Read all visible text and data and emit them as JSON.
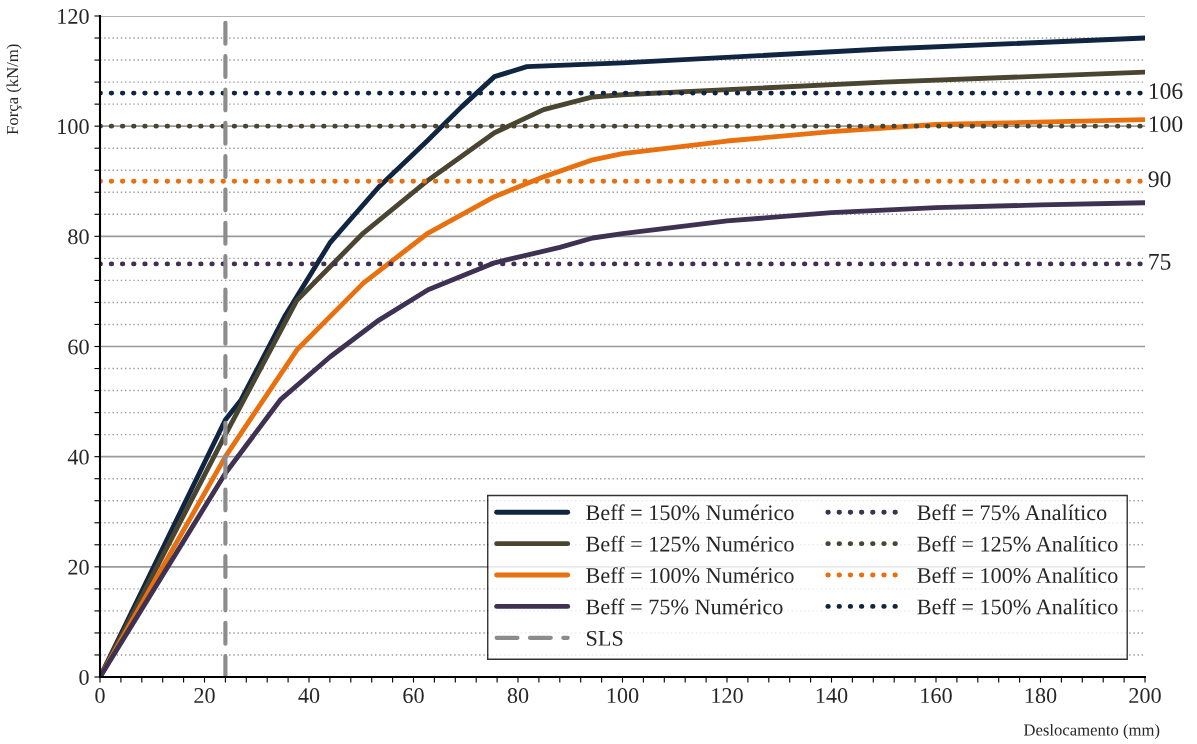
{
  "chart_data": {
    "type": "line",
    "xlabel": "Deslocamento (mm)",
    "ylabel": "Força (kN/m)",
    "xlim": [
      0,
      200
    ],
    "ylim": [
      0,
      120
    ],
    "xticks": [
      0,
      {
        "value": 4,
        "label": null
      },
      {
        "value": 8,
        "label": null
      },
      {
        "value": 12,
        "label": null
      },
      {
        "value": 16,
        "label": null
      },
      20,
      {
        "value": 24,
        "label": null
      },
      {
        "value": 28,
        "label": null
      },
      {
        "value": 32,
        "label": null
      },
      {
        "value": 36,
        "label": null
      },
      40,
      {
        "value": 44,
        "label": null
      },
      {
        "value": 48,
        "label": null
      },
      {
        "value": 52,
        "label": null
      },
      {
        "value": 56,
        "label": null
      },
      60,
      {
        "value": 64,
        "label": null
      },
      {
        "value": 68,
        "label": null
      },
      {
        "value": 72,
        "label": null
      },
      {
        "value": 76,
        "label": null
      },
      80,
      {
        "value": 84,
        "label": null
      },
      {
        "value": 88,
        "label": null
      },
      {
        "value": 92,
        "label": null
      },
      {
        "value": 96,
        "label": null
      },
      100,
      {
        "value": 104,
        "label": null
      },
      {
        "value": 108,
        "label": null
      },
      {
        "value": 112,
        "label": null
      },
      {
        "value": 116,
        "label": null
      },
      120,
      {
        "value": 124,
        "label": null
      },
      {
        "value": 128,
        "label": null
      },
      {
        "value": 132,
        "label": null
      },
      {
        "value": 136,
        "label": null
      },
      140,
      {
        "value": 144,
        "label": null
      },
      {
        "value": 148,
        "label": null
      },
      {
        "value": 152,
        "label": null
      },
      {
        "value": 156,
        "label": null
      },
      160,
      {
        "value": 164,
        "label": null
      },
      {
        "value": 168,
        "label": null
      },
      {
        "value": 172,
        "label": null
      },
      {
        "value": 176,
        "label": null
      },
      180,
      {
        "value": 184,
        "label": null
      },
      {
        "value": 188,
        "label": null
      },
      {
        "value": 192,
        "label": null
      },
      {
        "value": 196,
        "label": null
      },
      200
    ],
    "yticks": [
      0,
      {
        "value": 4,
        "label": null
      },
      {
        "value": 8,
        "label": null
      },
      {
        "value": 12,
        "label": null
      },
      {
        "value": 16,
        "label": null
      },
      20,
      {
        "value": 24,
        "label": null
      },
      {
        "value": 28,
        "label": null
      },
      {
        "value": 32,
        "label": null
      },
      {
        "value": 36,
        "label": null
      },
      40,
      {
        "value": 44,
        "label": null
      },
      {
        "value": 48,
        "label": null
      },
      {
        "value": 52,
        "label": null
      },
      {
        "value": 56,
        "label": null
      },
      60,
      {
        "value": 64,
        "label": null
      },
      {
        "value": 68,
        "label": null
      },
      {
        "value": 72,
        "label": null
      },
      {
        "value": 76,
        "label": null
      },
      80,
      {
        "value": 84,
        "label": null
      },
      {
        "value": 88,
        "label": null
      },
      {
        "value": 92,
        "label": null
      },
      {
        "value": 96,
        "label": null
      },
      100,
      {
        "value": 104,
        "label": null
      },
      {
        "value": 108,
        "label": null
      },
      {
        "value": 112,
        "label": null
      },
      {
        "value": 116,
        "label": null
      },
      120
    ],
    "grid": "y",
    "legend": "bottom right",
    "marker": "none",
    "series": [
      {
        "name": "Beff = 150% Numérico",
        "color": "#0f2541",
        "line_style": "solid",
        "x": [
          0,
          24,
          27,
          35.3,
          44,
          53.4,
          62.8,
          69.2,
          75.5,
          81.7,
          100,
          150,
          200
        ],
        "values": [
          0,
          46.7,
          50.3,
          65.4,
          78.8,
          89,
          97.5,
          103.5,
          109,
          110.8,
          111.5,
          114,
          116
        ]
      },
      {
        "name": "Beff = 125% Numérico",
        "color": "#4a4530",
        "line_style": "solid",
        "x": [
          0,
          24,
          37.7,
          50.4,
          62.8,
          75.5,
          84.9,
          94.3,
          100,
          150,
          200
        ],
        "values": [
          0,
          44,
          68.4,
          80.6,
          90.2,
          98.8,
          103,
          105.3,
          105.7,
          108,
          109.8
        ]
      },
      {
        "name": "Beff = 100% Numérico",
        "color": "#e8700f",
        "line_style": "solid",
        "x": [
          0,
          24,
          37.7,
          50.4,
          62.8,
          75.5,
          84.9,
          94.3,
          100,
          120,
          140,
          160,
          200
        ],
        "values": [
          0,
          40,
          59.4,
          71.5,
          80.6,
          87.2,
          90.8,
          93.9,
          95,
          97.3,
          99,
          100.3,
          101.2
        ]
      },
      {
        "name": "Beff = 75% Numérico",
        "color": "#3f3152",
        "line_style": "solid",
        "x": [
          0,
          24,
          34.5,
          44,
          53.4,
          62.8,
          75.5,
          88,
          94.3,
          100,
          120,
          140,
          160,
          180,
          200
        ],
        "values": [
          0,
          37,
          50.3,
          58.1,
          64.8,
          70.3,
          75.2,
          78,
          79.7,
          80.5,
          82.8,
          84.3,
          85.2,
          85.7,
          86.1
        ]
      },
      {
        "name": "Beff = 75% Analítico",
        "color": "#3f3152",
        "line_style": "dotted",
        "x": [
          0,
          200
        ],
        "values": [
          75,
          75
        ],
        "value_labels": [
          null,
          "75"
        ]
      },
      {
        "name": "Beff = 125% Analítico",
        "color": "#4a4530",
        "line_style": "dotted",
        "x": [
          0,
          200
        ],
        "values": [
          100,
          100
        ],
        "value_labels": [
          null,
          "100"
        ]
      },
      {
        "name": "Beff = 100% Analítico",
        "color": "#e8700f",
        "line_style": "dotted",
        "x": [
          0,
          200
        ],
        "values": [
          90,
          90
        ],
        "value_labels": [
          null,
          "90"
        ]
      },
      {
        "name": "Beff = 150% Analítico",
        "color": "#0f2541",
        "line_style": "dotted",
        "x": [
          0,
          200
        ],
        "values": [
          106,
          106
        ],
        "value_labels": [
          null,
          "106"
        ]
      },
      {
        "name": "SLS",
        "color": "#8c8c8c",
        "line_style": "dashed",
        "x": [
          24,
          24
        ],
        "values": [
          0,
          120
        ]
      }
    ]
  }
}
